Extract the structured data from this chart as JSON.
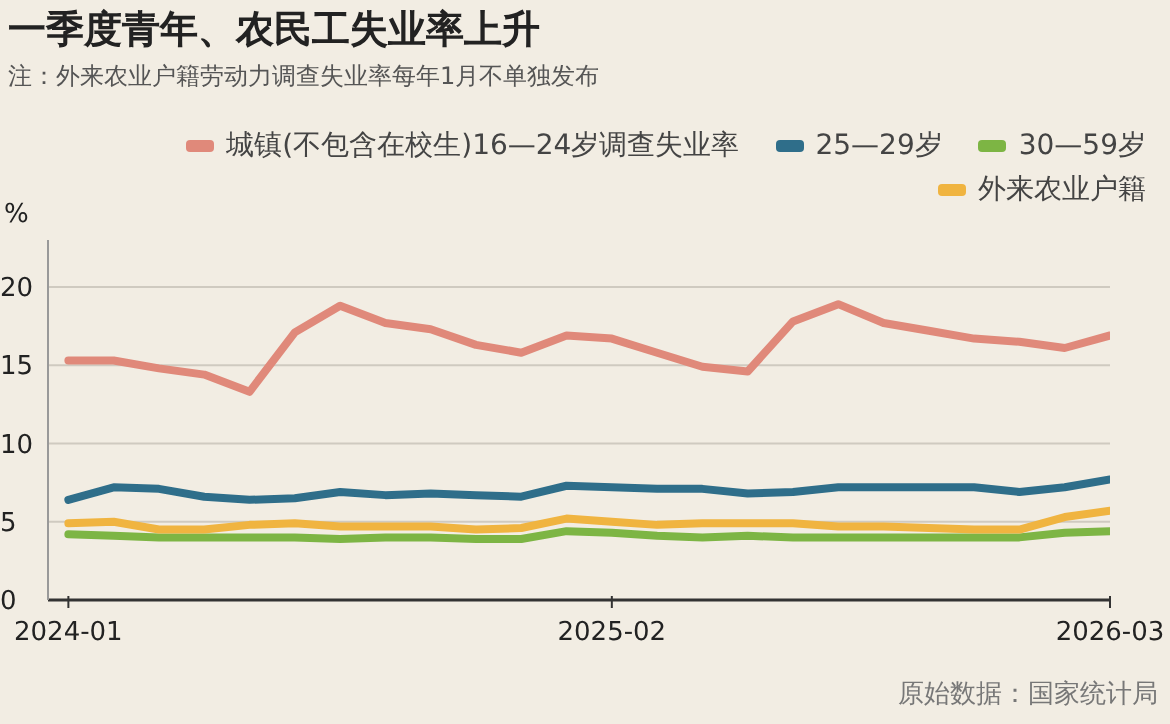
{
  "chart_data": {
    "type": "line",
    "title": "一季度青年、农民工失业率上升",
    "subtitle": "注：外来农业户籍劳动力调查失业率每年1月不单独发布",
    "ylabel": "%",
    "annotations": [
      "原始数据：国家统计局"
    ],
    "categories": [
      "2024-01",
      null,
      null,
      null,
      null,
      null,
      null,
      null,
      null,
      null,
      null,
      null,
      "2025-02",
      null,
      null,
      null,
      null,
      null,
      null,
      null,
      null,
      null,
      null,
      "2026-03"
    ],
    "series": [
      {
        "name": "城镇(不包含在校生)16—24岁调查失业率",
        "color": "#e0897a",
        "values": [
          15.3,
          15.3,
          14.8,
          14.4,
          13.3,
          17.1,
          18.8,
          17.7,
          17.3,
          16.3,
          15.8,
          16.9,
          16.7,
          15.8,
          14.9,
          14.6,
          17.8,
          18.9,
          17.7,
          17.2,
          16.7,
          16.5,
          16.1,
          16.9
        ]
      },
      {
        "name": "25—29岁",
        "color": "#2f6e8a",
        "values": [
          6.4,
          7.2,
          7.1,
          6.6,
          6.4,
          6.5,
          6.9,
          6.7,
          6.8,
          6.7,
          6.6,
          7.3,
          7.2,
          7.1,
          7.1,
          6.8,
          6.9,
          7.2,
          7.2,
          7.2,
          7.2,
          6.9,
          7.2,
          7.7
        ]
      },
      {
        "name": "30—59岁",
        "color": "#7db544",
        "values": [
          4.2,
          4.1,
          4.0,
          4.0,
          4.0,
          4.0,
          3.9,
          4.0,
          4.0,
          3.9,
          3.9,
          4.4,
          4.3,
          4.1,
          4.0,
          4.1,
          4.0,
          4.0,
          4.0,
          4.0,
          4.0,
          4.0,
          4.3,
          4.4
        ]
      },
      {
        "name": "外来农业户籍",
        "color": "#f0b440",
        "values": [
          4.9,
          5.0,
          4.5,
          4.5,
          4.8,
          4.9,
          4.7,
          4.7,
          4.7,
          4.5,
          4.6,
          5.2,
          5.0,
          4.8,
          4.9,
          4.9,
          4.9,
          4.7,
          4.7,
          4.6,
          4.5,
          4.5,
          5.3,
          5.7
        ]
      }
    ],
    "ylim": [
      0,
      23
    ],
    "yticks": [
      0,
      5,
      10,
      15,
      20
    ],
    "grid": "y",
    "legend": "top right",
    "marker": "none",
    "line_style": "solid"
  }
}
